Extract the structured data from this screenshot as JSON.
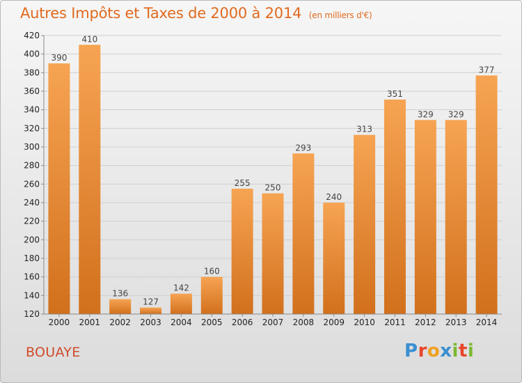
{
  "chart_data": {
    "type": "bar",
    "title": "Autres Impôts et Taxes de 2000 à 2014",
    "unit": "(en milliers d'€)",
    "categories": [
      "2000",
      "2001",
      "2002",
      "2003",
      "2004",
      "2005",
      "2006",
      "2007",
      "2008",
      "2009",
      "2010",
      "2011",
      "2012",
      "2013",
      "2014"
    ],
    "values": [
      390,
      410,
      136,
      127,
      142,
      160,
      255,
      250,
      293,
      240,
      313,
      351,
      329,
      329,
      377
    ],
    "ylim": [
      120,
      420
    ],
    "yticks": [
      120,
      140,
      160,
      180,
      200,
      220,
      240,
      260,
      280,
      300,
      320,
      340,
      360,
      380,
      400,
      420
    ],
    "grid": true,
    "bar_color": "#f0923a"
  },
  "commune": "BOUAYE",
  "logo": {
    "letters": [
      "P",
      "r",
      "o",
      "x",
      "i",
      "t",
      "i"
    ],
    "colors": [
      "#3a8fd1",
      "#e8452a",
      "#f0a020",
      "#3a8fd1",
      "#7cb832",
      "#e8452a",
      "#7cb832"
    ]
  }
}
